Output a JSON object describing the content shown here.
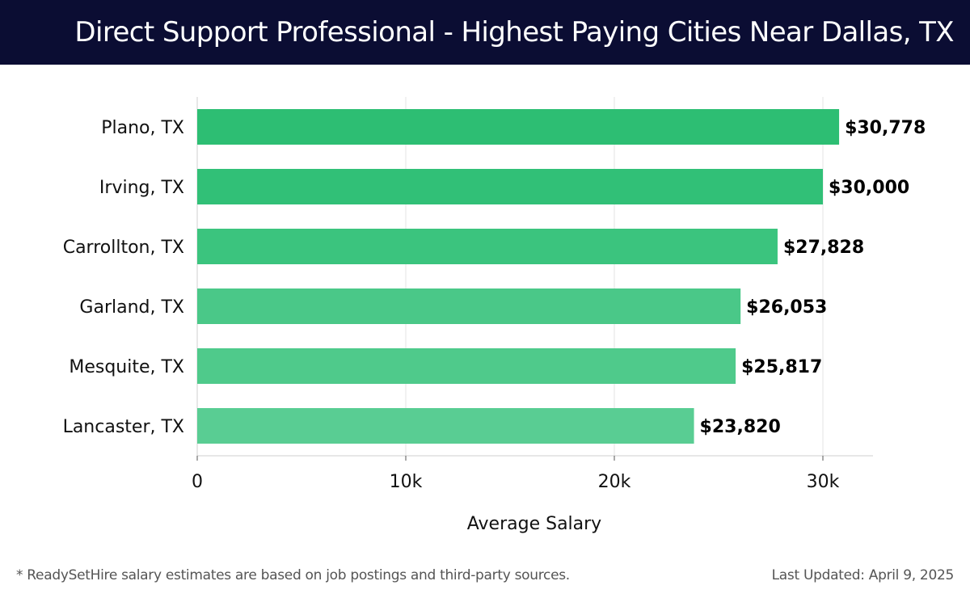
{
  "title": "Direct Support Professional - Highest Paying Cities Near Dallas, TX",
  "footer": {
    "note": "* ReadySetHire salary estimates are based on job postings and third-party sources.",
    "updated": "Last Updated: April 9, 2025"
  },
  "colors": {
    "header_bg": "#0b0d33",
    "bar_colors": [
      "#2dbe73",
      "#31c077",
      "#3bc47e",
      "#4ac888",
      "#4fca8b",
      "#59cd93"
    ],
    "grid": "#e3e3e3",
    "label": "#111111"
  },
  "chart_data": {
    "type": "bar",
    "orientation": "horizontal",
    "categories": [
      "Plano, TX",
      "Irving, TX",
      "Carrollton, TX",
      "Garland, TX",
      "Mesquite, TX",
      "Lancaster, TX"
    ],
    "values": [
      30778,
      30000,
      27828,
      26053,
      25817,
      23820
    ],
    "value_labels": [
      "$30,778",
      "$30,000",
      "$27,828",
      "$26,053",
      "$25,817",
      "$23,820"
    ],
    "xlabel": "Average Salary",
    "ylabel": "",
    "xlim": [
      0,
      32400
    ],
    "xticks": [
      0,
      10000,
      20000,
      30000
    ],
    "xtick_labels": [
      "0",
      "10k",
      "20k",
      "30k"
    ],
    "grid": true
  }
}
